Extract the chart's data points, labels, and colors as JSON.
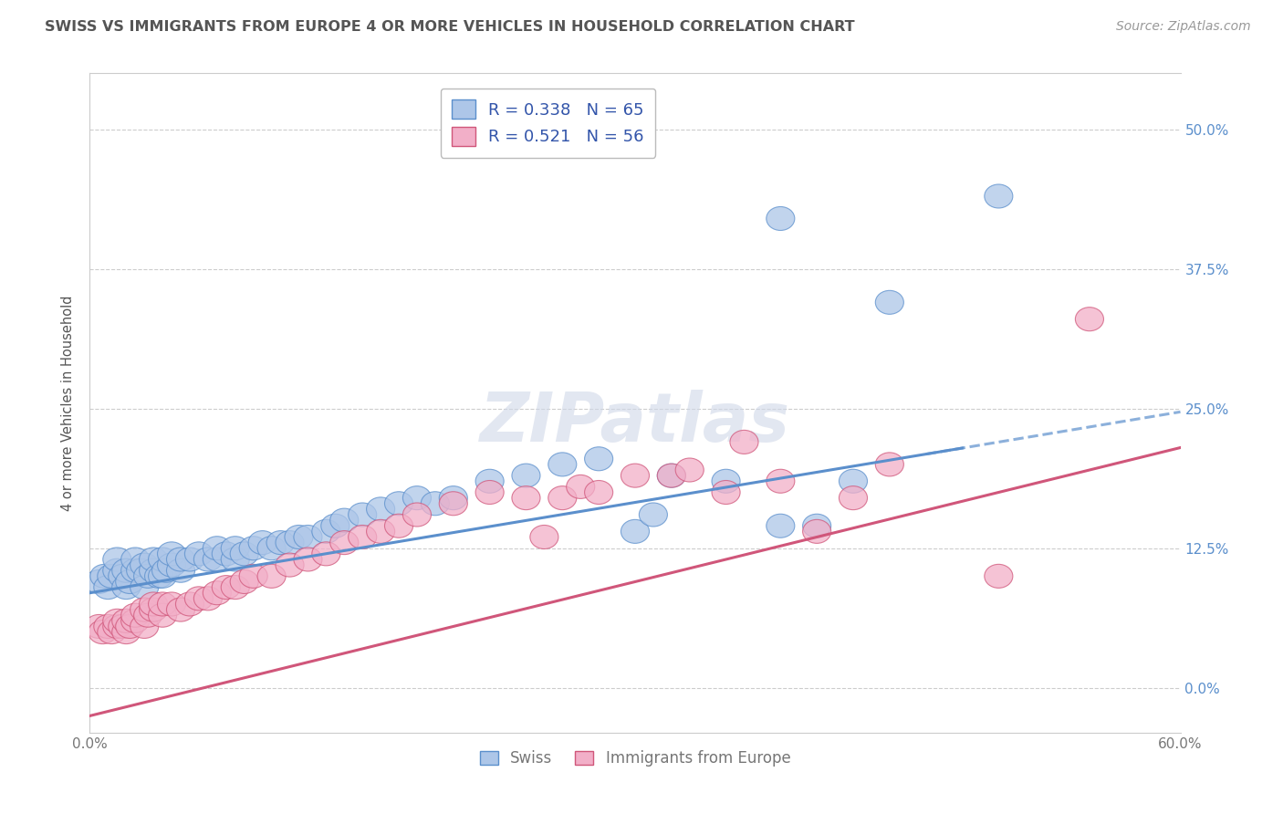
{
  "title": "SWISS VS IMMIGRANTS FROM EUROPE 4 OR MORE VEHICLES IN HOUSEHOLD CORRELATION CHART",
  "source": "Source: ZipAtlas.com",
  "ylabel": "4 or more Vehicles in Household",
  "xlim": [
    0.0,
    0.6
  ],
  "ylim": [
    -0.04,
    0.55
  ],
  "yticks": [
    0.0,
    0.125,
    0.25,
    0.375,
    0.5
  ],
  "ytick_labels": [
    "0.0%",
    "12.5%",
    "25.0%",
    "37.5%",
    "50.0%"
  ],
  "xticks": [
    0.0,
    0.1,
    0.2,
    0.3,
    0.4,
    0.5,
    0.6
  ],
  "xtick_labels": [
    "0.0%",
    "",
    "",
    "",
    "",
    "",
    "60.0%"
  ],
  "swiss_R": 0.338,
  "swiss_N": 65,
  "immig_R": 0.521,
  "immig_N": 56,
  "swiss_color": "#adc6e8",
  "immig_color": "#f2afc8",
  "swiss_line_color": "#5b8fcc",
  "immig_line_color": "#d0567a",
  "title_color": "#555555",
  "axis_label_color": "#555555",
  "tick_right_color": "#5b8fcc",
  "tick_color": "#777777",
  "watermark": "ZIPatlas",
  "background_color": "#ffffff",
  "grid_color": "#cccccc",
  "legend_text_color": "#3355aa",
  "swiss_line_intercept": 0.085,
  "swiss_line_slope": 0.27,
  "immig_line_intercept": -0.025,
  "immig_line_slope": 0.4,
  "swiss_scatter_x": [
    0.005,
    0.008,
    0.01,
    0.012,
    0.015,
    0.015,
    0.018,
    0.02,
    0.02,
    0.022,
    0.025,
    0.025,
    0.028,
    0.03,
    0.03,
    0.032,
    0.035,
    0.035,
    0.038,
    0.04,
    0.04,
    0.042,
    0.045,
    0.045,
    0.05,
    0.05,
    0.055,
    0.06,
    0.065,
    0.07,
    0.07,
    0.075,
    0.08,
    0.08,
    0.085,
    0.09,
    0.095,
    0.1,
    0.105,
    0.11,
    0.115,
    0.12,
    0.13,
    0.135,
    0.14,
    0.15,
    0.16,
    0.17,
    0.18,
    0.19,
    0.2,
    0.22,
    0.24,
    0.26,
    0.28,
    0.3,
    0.31,
    0.32,
    0.35,
    0.38,
    0.38,
    0.4,
    0.42,
    0.44,
    0.5
  ],
  "swiss_scatter_y": [
    0.095,
    0.1,
    0.09,
    0.1,
    0.105,
    0.115,
    0.1,
    0.09,
    0.105,
    0.095,
    0.105,
    0.115,
    0.105,
    0.09,
    0.11,
    0.1,
    0.105,
    0.115,
    0.1,
    0.1,
    0.115,
    0.105,
    0.11,
    0.12,
    0.105,
    0.115,
    0.115,
    0.12,
    0.115,
    0.115,
    0.125,
    0.12,
    0.115,
    0.125,
    0.12,
    0.125,
    0.13,
    0.125,
    0.13,
    0.13,
    0.135,
    0.135,
    0.14,
    0.145,
    0.15,
    0.155,
    0.16,
    0.165,
    0.17,
    0.165,
    0.17,
    0.185,
    0.19,
    0.2,
    0.205,
    0.14,
    0.155,
    0.19,
    0.185,
    0.145,
    0.42,
    0.145,
    0.185,
    0.345,
    0.44
  ],
  "immig_scatter_x": [
    0.005,
    0.007,
    0.01,
    0.012,
    0.015,
    0.015,
    0.018,
    0.02,
    0.02,
    0.022,
    0.025,
    0.025,
    0.03,
    0.03,
    0.032,
    0.035,
    0.035,
    0.04,
    0.04,
    0.045,
    0.05,
    0.055,
    0.06,
    0.065,
    0.07,
    0.075,
    0.08,
    0.085,
    0.09,
    0.1,
    0.11,
    0.12,
    0.13,
    0.14,
    0.15,
    0.16,
    0.17,
    0.18,
    0.2,
    0.22,
    0.24,
    0.25,
    0.26,
    0.27,
    0.28,
    0.3,
    0.32,
    0.33,
    0.35,
    0.36,
    0.38,
    0.4,
    0.42,
    0.44,
    0.5,
    0.55
  ],
  "immig_scatter_y": [
    0.055,
    0.05,
    0.055,
    0.05,
    0.055,
    0.06,
    0.055,
    0.05,
    0.06,
    0.055,
    0.06,
    0.065,
    0.055,
    0.07,
    0.065,
    0.07,
    0.075,
    0.065,
    0.075,
    0.075,
    0.07,
    0.075,
    0.08,
    0.08,
    0.085,
    0.09,
    0.09,
    0.095,
    0.1,
    0.1,
    0.11,
    0.115,
    0.12,
    0.13,
    0.135,
    0.14,
    0.145,
    0.155,
    0.165,
    0.175,
    0.17,
    0.135,
    0.17,
    0.18,
    0.175,
    0.19,
    0.19,
    0.195,
    0.175,
    0.22,
    0.185,
    0.14,
    0.17,
    0.2,
    0.1,
    0.33
  ]
}
